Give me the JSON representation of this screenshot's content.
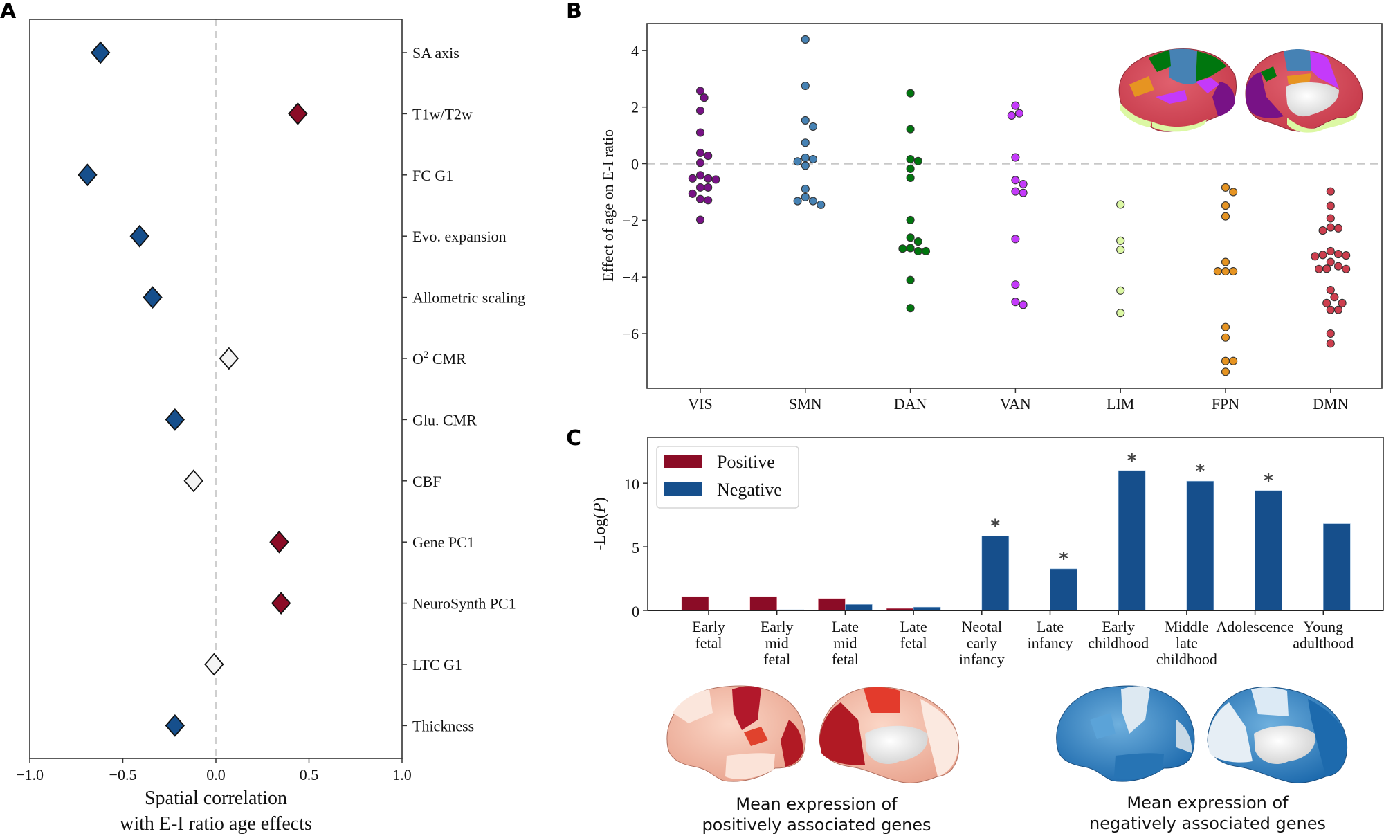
{
  "panels": {
    "a": {
      "letter": "A"
    },
    "b": {
      "letter": "B"
    },
    "c": {
      "letter": "C"
    }
  },
  "chart_data": [
    {
      "id": "panel-a",
      "type": "scatter",
      "title": "",
      "xlabel": "Spatial correlation\nwith E-I ratio age effects",
      "xlabel_lines": [
        "Spatial correlation",
        "with E-I ratio age effects"
      ],
      "ylabel": "",
      "xlim": [
        -1.0,
        1.0
      ],
      "xticks": [
        -1.0,
        -0.5,
        0.0,
        0.5,
        1.0
      ],
      "xtick_labels": [
        "−1.0",
        "−0.5",
        "0.0",
        "0.5",
        "1.0"
      ],
      "y_axis_side": "right",
      "reference_line": {
        "x": 0,
        "style": "dashed",
        "color": "#cccccc"
      },
      "marker": "diamond",
      "colors": {
        "positive": "#8b0c26",
        "negative": "#164f8c",
        "nonsignificant": "#f4f4f4"
      },
      "categories": [
        "SA axis",
        "T1w/T2w",
        "FC G1",
        "Evo. expansion",
        "Allometric scaling",
        "O² CMR",
        "Glu. CMR",
        "CBF",
        "Gene PC1",
        "NeuroSynth PC1",
        "LTC G1",
        "Thickness"
      ],
      "points": [
        {
          "label": "SA axis",
          "label_main": "SA axis",
          "label_sup": "",
          "label_tail": "",
          "value": -0.62,
          "status": "negative"
        },
        {
          "label": "T1w/T2w",
          "label_main": "T1w/T2w",
          "label_sup": "",
          "label_tail": "",
          "value": 0.44,
          "status": "positive"
        },
        {
          "label": "FC G1",
          "label_main": "FC G1",
          "label_sup": "",
          "label_tail": "",
          "value": -0.69,
          "status": "negative"
        },
        {
          "label": "Evo. expansion",
          "label_main": "Evo. expansion",
          "label_sup": "",
          "label_tail": "",
          "value": -0.41,
          "status": "negative"
        },
        {
          "label": "Allometric scaling",
          "label_main": "Allometric scaling",
          "label_sup": "",
          "label_tail": "",
          "value": -0.34,
          "status": "negative"
        },
        {
          "label": "O2 CMR",
          "label_main": "O",
          "label_sup": "2",
          "label_tail": " CMR",
          "value": 0.07,
          "status": "nonsignificant"
        },
        {
          "label": "Glu. CMR",
          "label_main": "Glu. CMR",
          "label_sup": "",
          "label_tail": "",
          "value": -0.22,
          "status": "negative"
        },
        {
          "label": "CBF",
          "label_main": "CBF",
          "label_sup": "",
          "label_tail": "",
          "value": -0.12,
          "status": "nonsignificant"
        },
        {
          "label": "Gene PC1",
          "label_main": "Gene PC1",
          "label_sup": "",
          "label_tail": "",
          "value": 0.34,
          "status": "positive"
        },
        {
          "label": "NeuroSynth PC1",
          "label_main": "NeuroSynth PC1",
          "label_sup": "",
          "label_tail": "",
          "value": 0.35,
          "status": "positive"
        },
        {
          "label": "LTC G1",
          "label_main": "LTC G1",
          "label_sup": "",
          "label_tail": "",
          "value": -0.01,
          "status": "nonsignificant"
        },
        {
          "label": "Thickness",
          "label_main": "Thickness",
          "label_sup": "",
          "label_tail": "",
          "value": -0.22,
          "status": "negative"
        }
      ]
    },
    {
      "id": "panel-b",
      "type": "scatter",
      "subtype": "swarm",
      "title": "",
      "xlabel": "",
      "ylabel": "Effect of age on E-I ratio",
      "ylim": [
        -7.93,
        4.95
      ],
      "yticks": [
        4,
        2,
        0,
        -2,
        -4,
        -6
      ],
      "ytick_labels": [
        "4",
        "2",
        "0",
        "−2",
        "−4",
        "−6"
      ],
      "reference_line": {
        "y": 0,
        "style": "dashed",
        "color": "#c8c8c8"
      },
      "grid": false,
      "categories": [
        "VIS",
        "SMN",
        "DAN",
        "VAN",
        "LIM",
        "FPN",
        "DMN"
      ],
      "series": [
        {
          "name": "VIS",
          "color": "#781286",
          "values": [
            2.57,
            2.33,
            1.87,
            1.1,
            0.38,
            0.28,
            0.03,
            -0.41,
            -0.52,
            -0.56,
            -0.52,
            -0.84,
            -0.84,
            -1.06,
            -1.25,
            -1.29,
            -1.98
          ]
        },
        {
          "name": "SMN",
          "color": "#4682b4",
          "values": [
            4.39,
            2.75,
            1.53,
            1.31,
            0.74,
            0.21,
            0.16,
            0.08,
            -0.07,
            -0.89,
            -1.18,
            -1.32,
            -1.32,
            -1.45
          ]
        },
        {
          "name": "DAN",
          "color": "#00760e",
          "values": [
            2.49,
            1.22,
            0.16,
            0.09,
            -0.18,
            -0.5,
            -1.99,
            -2.61,
            -2.75,
            -2.98,
            -3.09,
            -3.09,
            -3.0,
            -4.11,
            -5.1
          ]
        },
        {
          "name": "VAN",
          "color": "#c43afa",
          "values": [
            2.05,
            1.78,
            1.7,
            0.22,
            -0.58,
            -0.72,
            -0.98,
            -1.03,
            -2.66,
            -4.27,
            -4.88,
            -4.98
          ]
        },
        {
          "name": "LIM",
          "color": "#dcf8a4",
          "values": [
            -1.44,
            -2.72,
            -3.04,
            -4.48,
            -5.27
          ]
        },
        {
          "name": "FPN",
          "color": "#e69422",
          "values": [
            -0.84,
            -1.0,
            -1.48,
            -1.86,
            -3.47,
            -3.8,
            -3.8,
            -3.8,
            -5.77,
            -6.14,
            -6.97,
            -6.97,
            -7.35
          ]
        },
        {
          "name": "DMN",
          "color": "#cd3e4e",
          "values": [
            -0.98,
            -1.49,
            -1.93,
            -2.28,
            -2.36,
            -2.25,
            -3.19,
            -3.27,
            -3.24,
            -3.22,
            -3.09,
            -3.47,
            -3.62,
            -3.72,
            -3.72,
            -3.71,
            -4.46,
            -4.71,
            -4.92,
            -4.92,
            -5.16,
            -5.16,
            -6.0,
            -6.35
          ]
        }
      ],
      "inset": "Cortical surface maps (lateral and medial) colored by the seven functional networks"
    },
    {
      "id": "panel-c",
      "type": "bar",
      "title": "",
      "xlabel": "",
      "ylabel": "-Log(P)",
      "ylabel_main": "-Log(",
      "ylabel_italic": "P",
      "ylabel_tail": ")",
      "ylim": [
        0,
        13.6
      ],
      "yticks": [
        0,
        5,
        10
      ],
      "ytick_labels": [
        "0",
        "5",
        "10"
      ],
      "legend": {
        "position": "top-left",
        "entries": [
          "Positive",
          "Negative"
        ]
      },
      "categories": [
        "Early fetal",
        "Early mid fetal",
        "Late mid fetal",
        "Late fetal",
        "Neotal early infancy",
        "Late infancy",
        "Early childhood",
        "Middle late childhood",
        "Adolescence",
        "Young adulthood"
      ],
      "category_label_lines": [
        [
          "Early",
          "fetal"
        ],
        [
          "Early",
          "mid",
          "fetal"
        ],
        [
          "Late",
          "mid",
          "fetal"
        ],
        [
          "Late",
          "fetal"
        ],
        [
          "Neotal",
          "early",
          "infancy"
        ],
        [
          "Late",
          "infancy"
        ],
        [
          "Early",
          "childhood"
        ],
        [
          "Middle",
          "late",
          "childhood"
        ],
        [
          "Adolescence"
        ],
        [
          "Young",
          "adulthood"
        ]
      ],
      "series": [
        {
          "name": "Positive",
          "color": "#8b0c26",
          "values": [
            1.08,
            1.08,
            0.93,
            0.16,
            0.0,
            0.0,
            0.0,
            0.0,
            0.0,
            0.0
          ]
        },
        {
          "name": "Negative",
          "color": "#164f8c",
          "values": [
            0.0,
            0.05,
            0.47,
            0.26,
            5.86,
            3.27,
            10.99,
            10.16,
            9.42,
            6.82
          ]
        }
      ],
      "significance_marker": "*",
      "significant_negative": [
        false,
        false,
        false,
        false,
        true,
        true,
        true,
        true,
        true,
        false
      ]
    }
  ],
  "brain_maps": {
    "positive": {
      "caption_lines": [
        "Mean expression of",
        "positively associated genes"
      ],
      "palette": "reds"
    },
    "negative": {
      "caption_lines": [
        "Mean expression of",
        "negatively associated genes"
      ],
      "palette": "blues"
    }
  }
}
